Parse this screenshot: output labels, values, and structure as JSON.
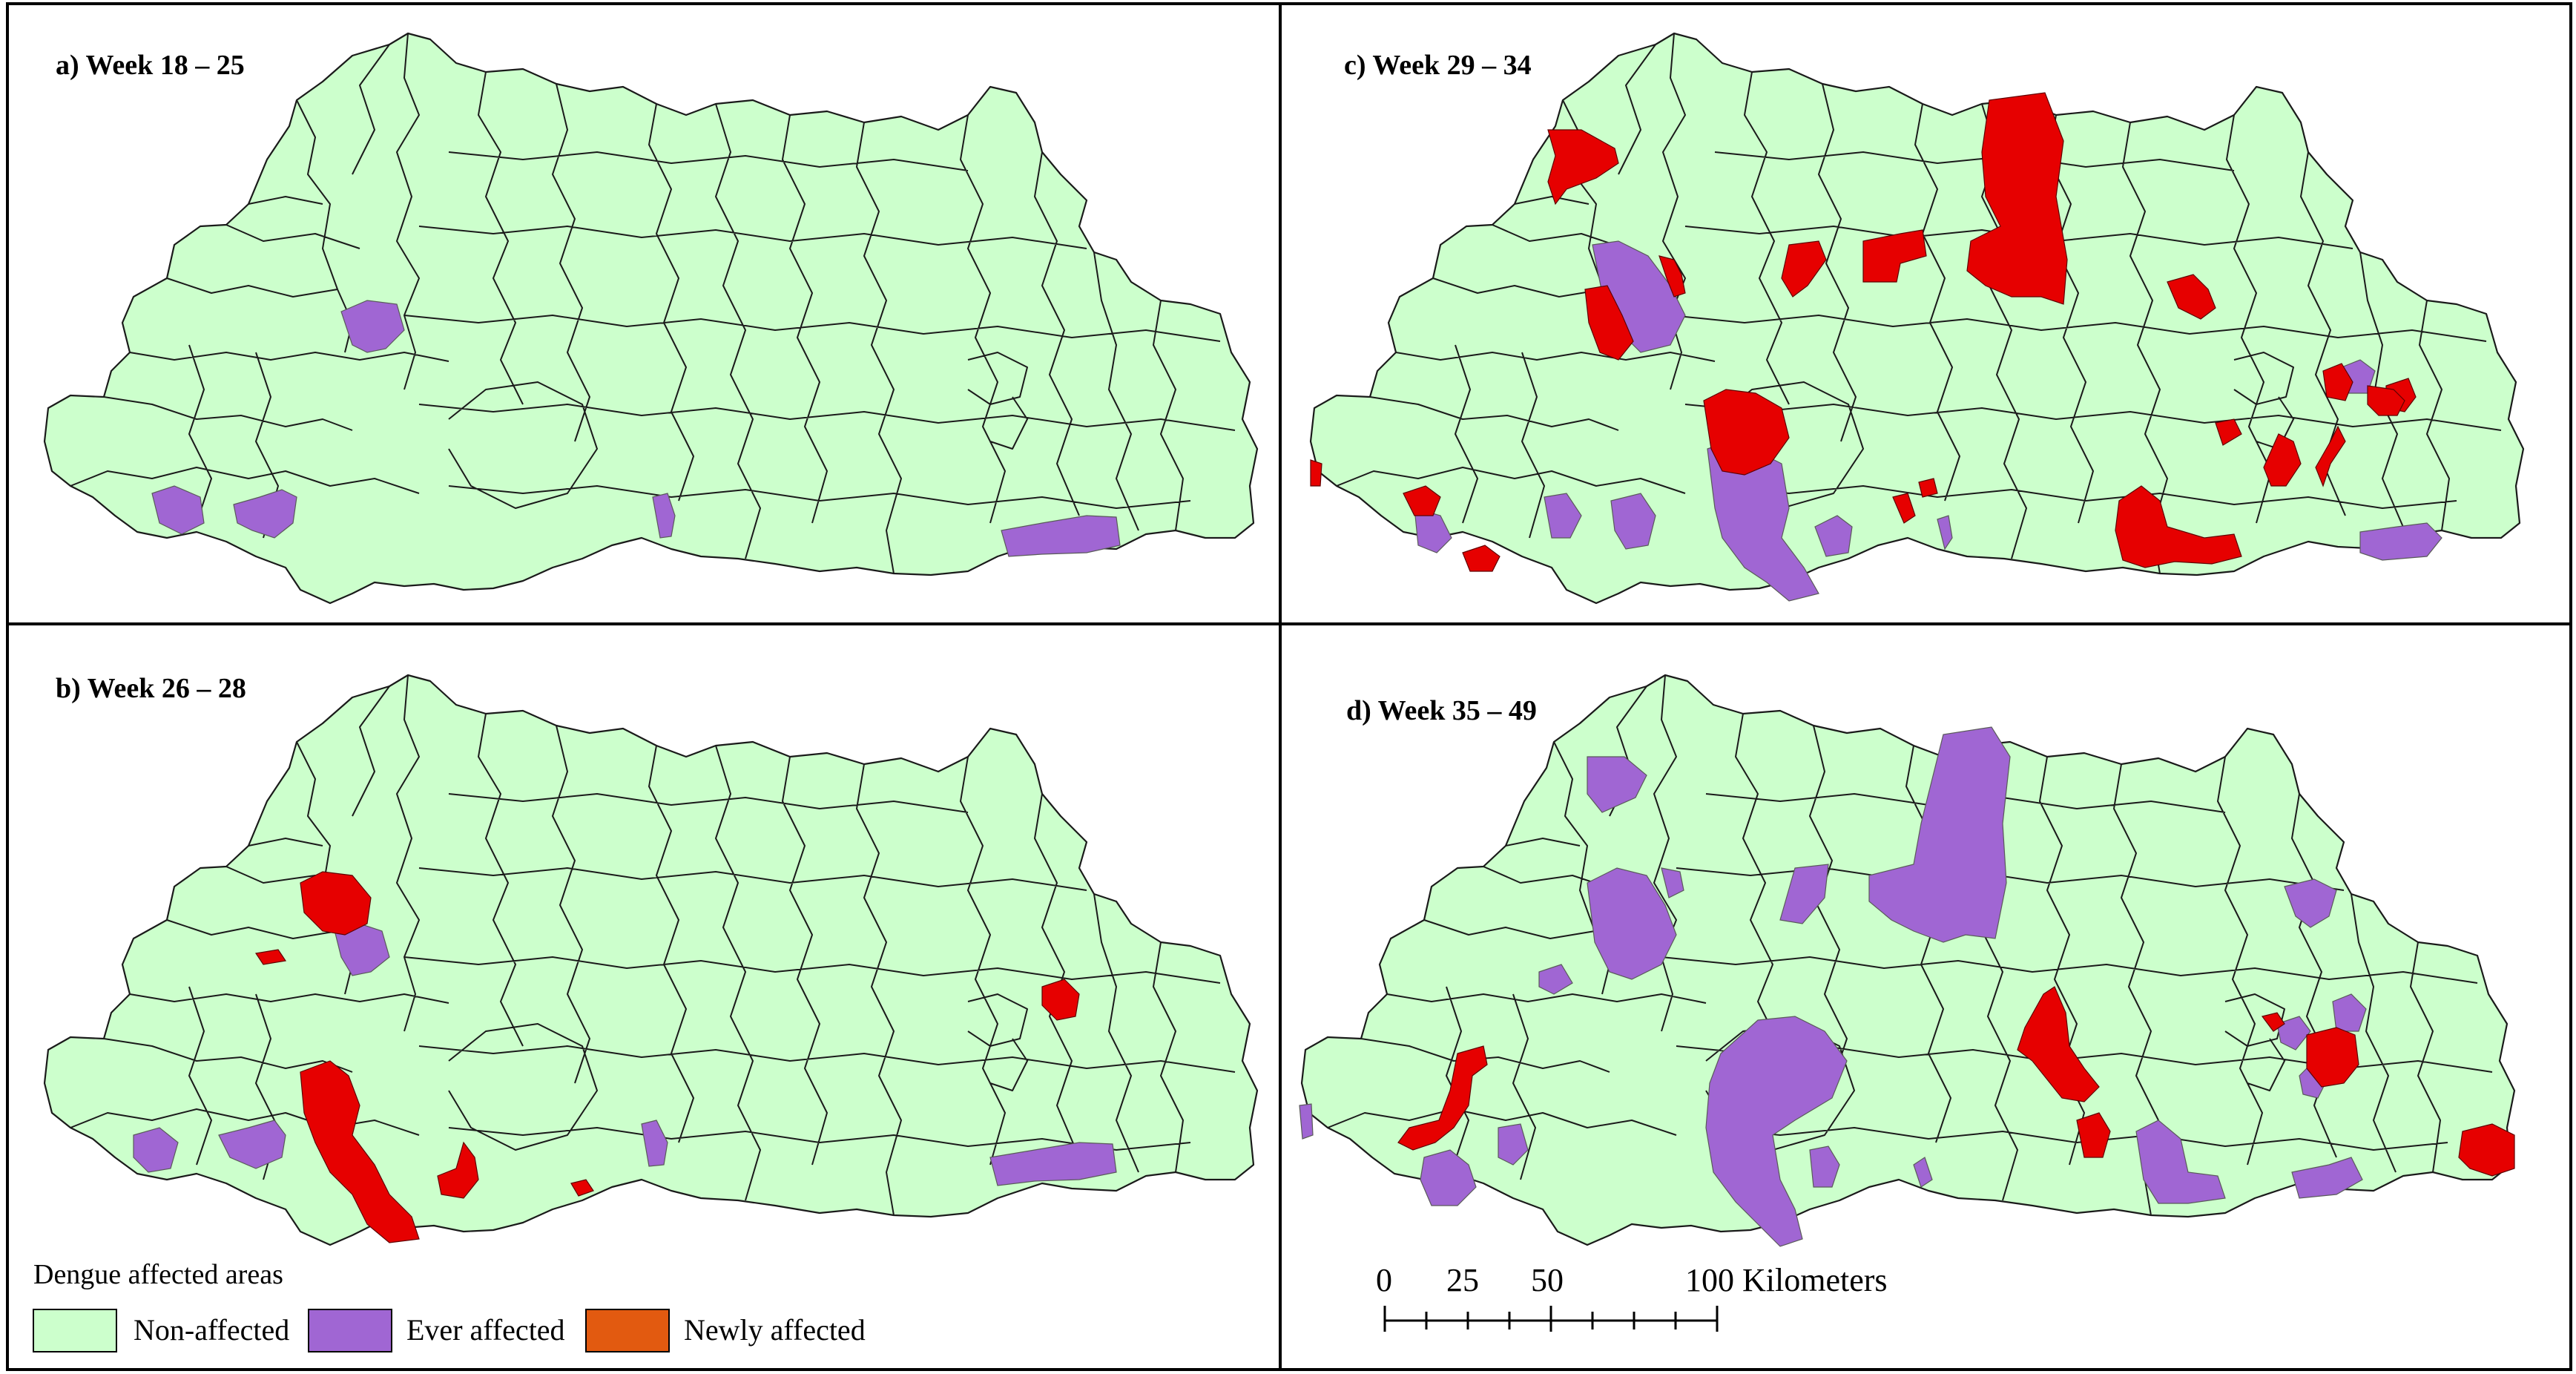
{
  "panels": {
    "a": {
      "title": "a) Week 18 – 25"
    },
    "b": {
      "title": "b) Week 26 – 28"
    },
    "c": {
      "title": "c) Week 29 – 34"
    },
    "d": {
      "title": "d) Week 35 – 49"
    }
  },
  "legend": {
    "title": "Dengue affected areas",
    "items": [
      {
        "label": "Non-affected",
        "color": "#ccffcc"
      },
      {
        "label": "Ever affected",
        "color": "#a066d3"
      },
      {
        "label": "Newly affected",
        "color": "#e25a10"
      }
    ]
  },
  "map_colors": {
    "non_affected": "#ccffcc",
    "ever_affected": "#a066d3",
    "newly_affected_on_map": "#e60000"
  },
  "scale_bar": {
    "labels": [
      "0",
      "25",
      "50",
      "100 Kilometers"
    ]
  }
}
